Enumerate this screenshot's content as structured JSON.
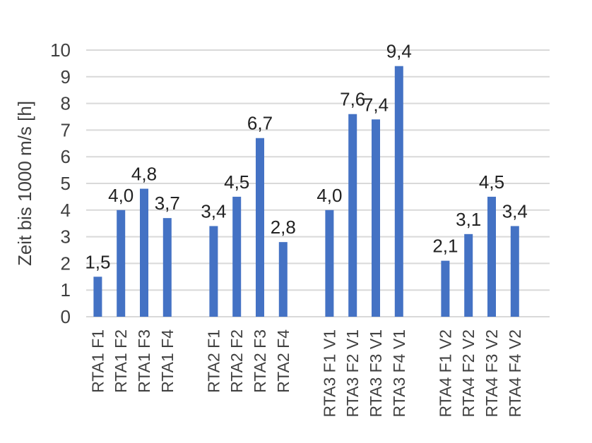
{
  "chart_data": {
    "type": "bar",
    "title": "",
    "xlabel": "",
    "ylabel": "Zeit bis 1000 m/s  [h]",
    "ylim": [
      0,
      10
    ],
    "yticks": [
      "0",
      "1",
      "2",
      "3",
      "4",
      "5",
      "6",
      "7",
      "8",
      "9",
      "10"
    ],
    "grid": true,
    "bar_color": "#4472C4",
    "grid_color": "#D9D9D9",
    "groups": [
      {
        "categories": [
          "RTA1 F1",
          "RTA1 F2",
          "RTA1 F3",
          "RTA1 F4"
        ],
        "values": [
          1.5,
          4.0,
          4.8,
          3.7
        ],
        "labels": [
          "1,5",
          "4,0",
          "4,8",
          "3,7"
        ]
      },
      {
        "categories": [
          "RTA2 F1",
          "RTA2 F2",
          "RTA2 F3",
          "RTA2 F4"
        ],
        "values": [
          3.4,
          4.5,
          6.7,
          2.8
        ],
        "labels": [
          "3,4",
          "4,5",
          "6,7",
          "2,8"
        ]
      },
      {
        "categories": [
          "RTA3 F1 V1",
          "RTA3 F2 V1",
          "RTA3 F3 V1",
          "RTA3 F4 V1"
        ],
        "values": [
          4.0,
          7.6,
          7.4,
          9.4
        ],
        "labels": [
          "4,0",
          "7,6",
          "7,4",
          "9,4"
        ]
      },
      {
        "categories": [
          "RTA4 F1 V2",
          "RTA4 F2 V2",
          "RTA4 F3 V2",
          "RTA4 F4 V2"
        ],
        "values": [
          2.1,
          3.1,
          4.5,
          3.4
        ],
        "labels": [
          "2,1",
          "3,1",
          "4,5",
          "3,4"
        ]
      }
    ]
  }
}
